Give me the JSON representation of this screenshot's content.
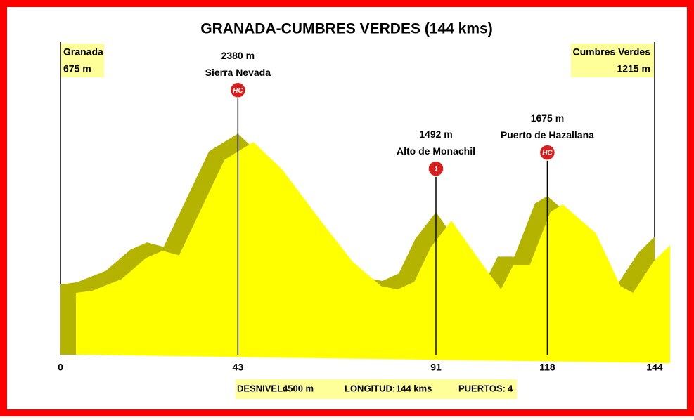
{
  "chart_data": {
    "type": "area",
    "title": "GRANADA-CUMBRES VERDES (144 kms)",
    "x": [
      0,
      4,
      11,
      17,
      21,
      25,
      30,
      36,
      43,
      50,
      59,
      67,
      74,
      78,
      82,
      86,
      91,
      98,
      103,
      106,
      110,
      115,
      118,
      126,
      132,
      135,
      140,
      144
    ],
    "values": [
      675,
      700,
      830,
      1070,
      1150,
      1100,
      1590,
      2180,
      2380,
      2070,
      1510,
      1030,
      750,
      715,
      800,
      1190,
      1492,
      1030,
      715,
      990,
      990,
      1590,
      1675,
      1350,
      750,
      675,
      1030,
      1215
    ],
    "color": "#ffff00",
    "shade_color": "#b3b300",
    "xlim": [
      0,
      144
    ],
    "xticks": [
      0,
      43,
      91,
      118,
      144
    ],
    "ylim": [
      0,
      2700
    ],
    "start": {
      "name": "Granada",
      "value": 675,
      "value_label": "675 m"
    },
    "end": {
      "name": "Cumbres Verdes",
      "value": 1215,
      "value_label": "1215 m"
    },
    "climbs": [
      {
        "x": 43,
        "value": 2380,
        "value_label": "2380 m",
        "name": "Sierra Nevada",
        "category": "HC"
      },
      {
        "x": 91,
        "value": 1492,
        "value_label": "1492 m",
        "name": "Alto de Monachil",
        "category": "1"
      },
      {
        "x": 118,
        "value": 1675,
        "value_label": "1675 m",
        "name": "Puerto de Hazallana",
        "category": "HC"
      }
    ]
  },
  "footer": [
    {
      "label": "DESNIVEL:",
      "value": "4500 m"
    },
    {
      "label": "LONGITUD:",
      "value": "144 kms"
    },
    {
      "label": "PUERTOS:",
      "value": "4"
    }
  ]
}
